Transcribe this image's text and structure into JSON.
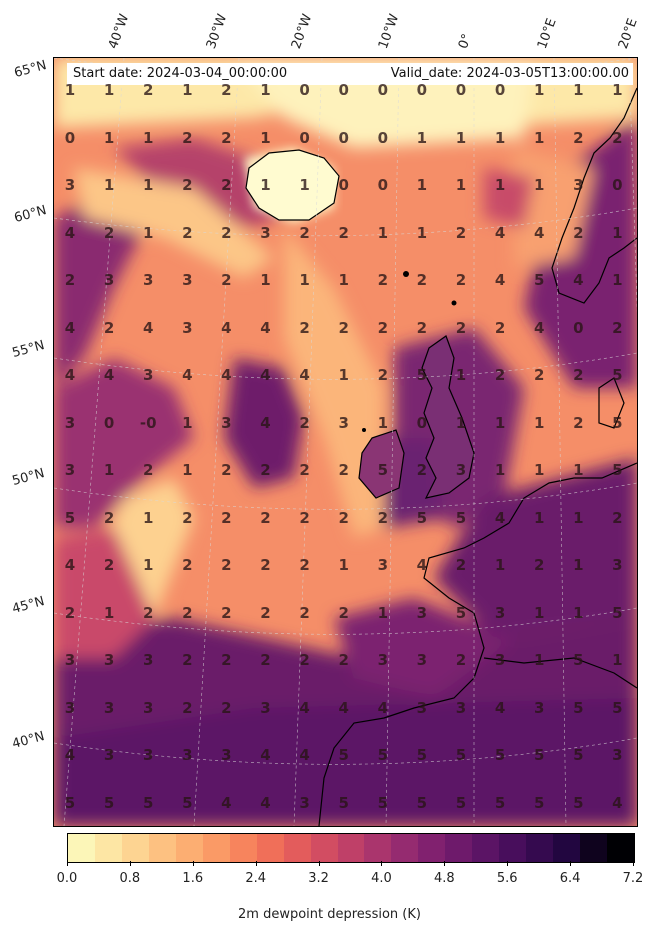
{
  "header": {
    "start_date": "Start date: 2024-03-04_00:00:00",
    "valid_date": "Valid_date: 2024-03-05T13:00:00.00"
  },
  "lon_labels": [
    "40°W",
    "30°W",
    "20°W",
    "10°W",
    "0°",
    "10°E",
    "20°E"
  ],
  "lat_labels": [
    "65°N",
    "60°N",
    "55°N",
    "50°N",
    "45°N",
    "40°N"
  ],
  "grid_values": [
    [
      "1",
      "1",
      "2",
      "1",
      "2",
      "1",
      "0",
      "0",
      "0",
      "0",
      "0",
      "0",
      "1",
      "1",
      "1"
    ],
    [
      "0",
      "1",
      "1",
      "2",
      "2",
      "1",
      "0",
      "0",
      "0",
      "1",
      "1",
      "1",
      "1",
      "2",
      "2"
    ],
    [
      "3",
      "1",
      "1",
      "2",
      "2",
      "1",
      "1",
      "0",
      "0",
      "1",
      "1",
      "1",
      "1",
      "3",
      "0"
    ],
    [
      "4",
      "2",
      "1",
      "2",
      "2",
      "3",
      "2",
      "2",
      "1",
      "1",
      "2",
      "4",
      "4",
      "2",
      "1"
    ],
    [
      "2",
      "3",
      "3",
      "3",
      "2",
      "1",
      "1",
      "1",
      "2",
      "2",
      "2",
      "4",
      "5",
      "4",
      "1"
    ],
    [
      "4",
      "2",
      "4",
      "3",
      "4",
      "4",
      "2",
      "2",
      "2",
      "2",
      "2",
      "2",
      "4",
      "0",
      "2"
    ],
    [
      "4",
      "4",
      "3",
      "4",
      "4",
      "4",
      "4",
      "1",
      "2",
      "5",
      "1",
      "2",
      "2",
      "2",
      "5"
    ],
    [
      "3",
      "0",
      "-0",
      "1",
      "3",
      "4",
      "2",
      "3",
      "1",
      "0",
      "1",
      "1",
      "1",
      "2",
      "5"
    ],
    [
      "3",
      "1",
      "2",
      "1",
      "2",
      "2",
      "2",
      "2",
      "5",
      "2",
      "3",
      "1",
      "1",
      "1",
      "5"
    ],
    [
      "5",
      "2",
      "1",
      "2",
      "2",
      "2",
      "2",
      "2",
      "2",
      "5",
      "5",
      "4",
      "1",
      "1",
      "2"
    ],
    [
      "4",
      "2",
      "1",
      "2",
      "2",
      "2",
      "2",
      "1",
      "3",
      "4",
      "2",
      "1",
      "2",
      "1",
      "3"
    ],
    [
      "2",
      "1",
      "2",
      "2",
      "2",
      "2",
      "2",
      "2",
      "1",
      "3",
      "5",
      "3",
      "1",
      "1",
      "5"
    ],
    [
      "3",
      "3",
      "3",
      "2",
      "2",
      "2",
      "2",
      "2",
      "3",
      "3",
      "2",
      "3",
      "1",
      "5",
      "1"
    ],
    [
      "3",
      "3",
      "3",
      "2",
      "2",
      "3",
      "4",
      "4",
      "4",
      "3",
      "3",
      "4",
      "3",
      "5",
      "5"
    ],
    [
      "4",
      "3",
      "3",
      "3",
      "3",
      "4",
      "4",
      "5",
      "5",
      "5",
      "5",
      "5",
      "5",
      "5",
      "3"
    ],
    [
      "5",
      "5",
      "5",
      "5",
      "4",
      "4",
      "3",
      "5",
      "5",
      "5",
      "5",
      "5",
      "5",
      "5",
      "4"
    ]
  ],
  "colorbar": {
    "title": "2m dewpoint depression (K)",
    "tick_labels": [
      "0.0",
      "0.8",
      "1.6",
      "2.4",
      "3.2",
      "4.0",
      "4.8",
      "5.6",
      "6.4",
      "7.2"
    ],
    "min": 0.0,
    "max": 7.2,
    "colors": [
      "#fcf6b8",
      "#fde6a4",
      "#fdd492",
      "#fdc181",
      "#fcae72",
      "#fa9a66",
      "#f7845d",
      "#f06f59",
      "#e35c5c",
      "#d24d62",
      "#bf4068",
      "#aa356d",
      "#952b70",
      "#81216f",
      "#6e1a6b",
      "#5b1465",
      "#480e5c",
      "#350a4f",
      "#220640",
      "#0f031e",
      "#000004"
    ]
  }
}
